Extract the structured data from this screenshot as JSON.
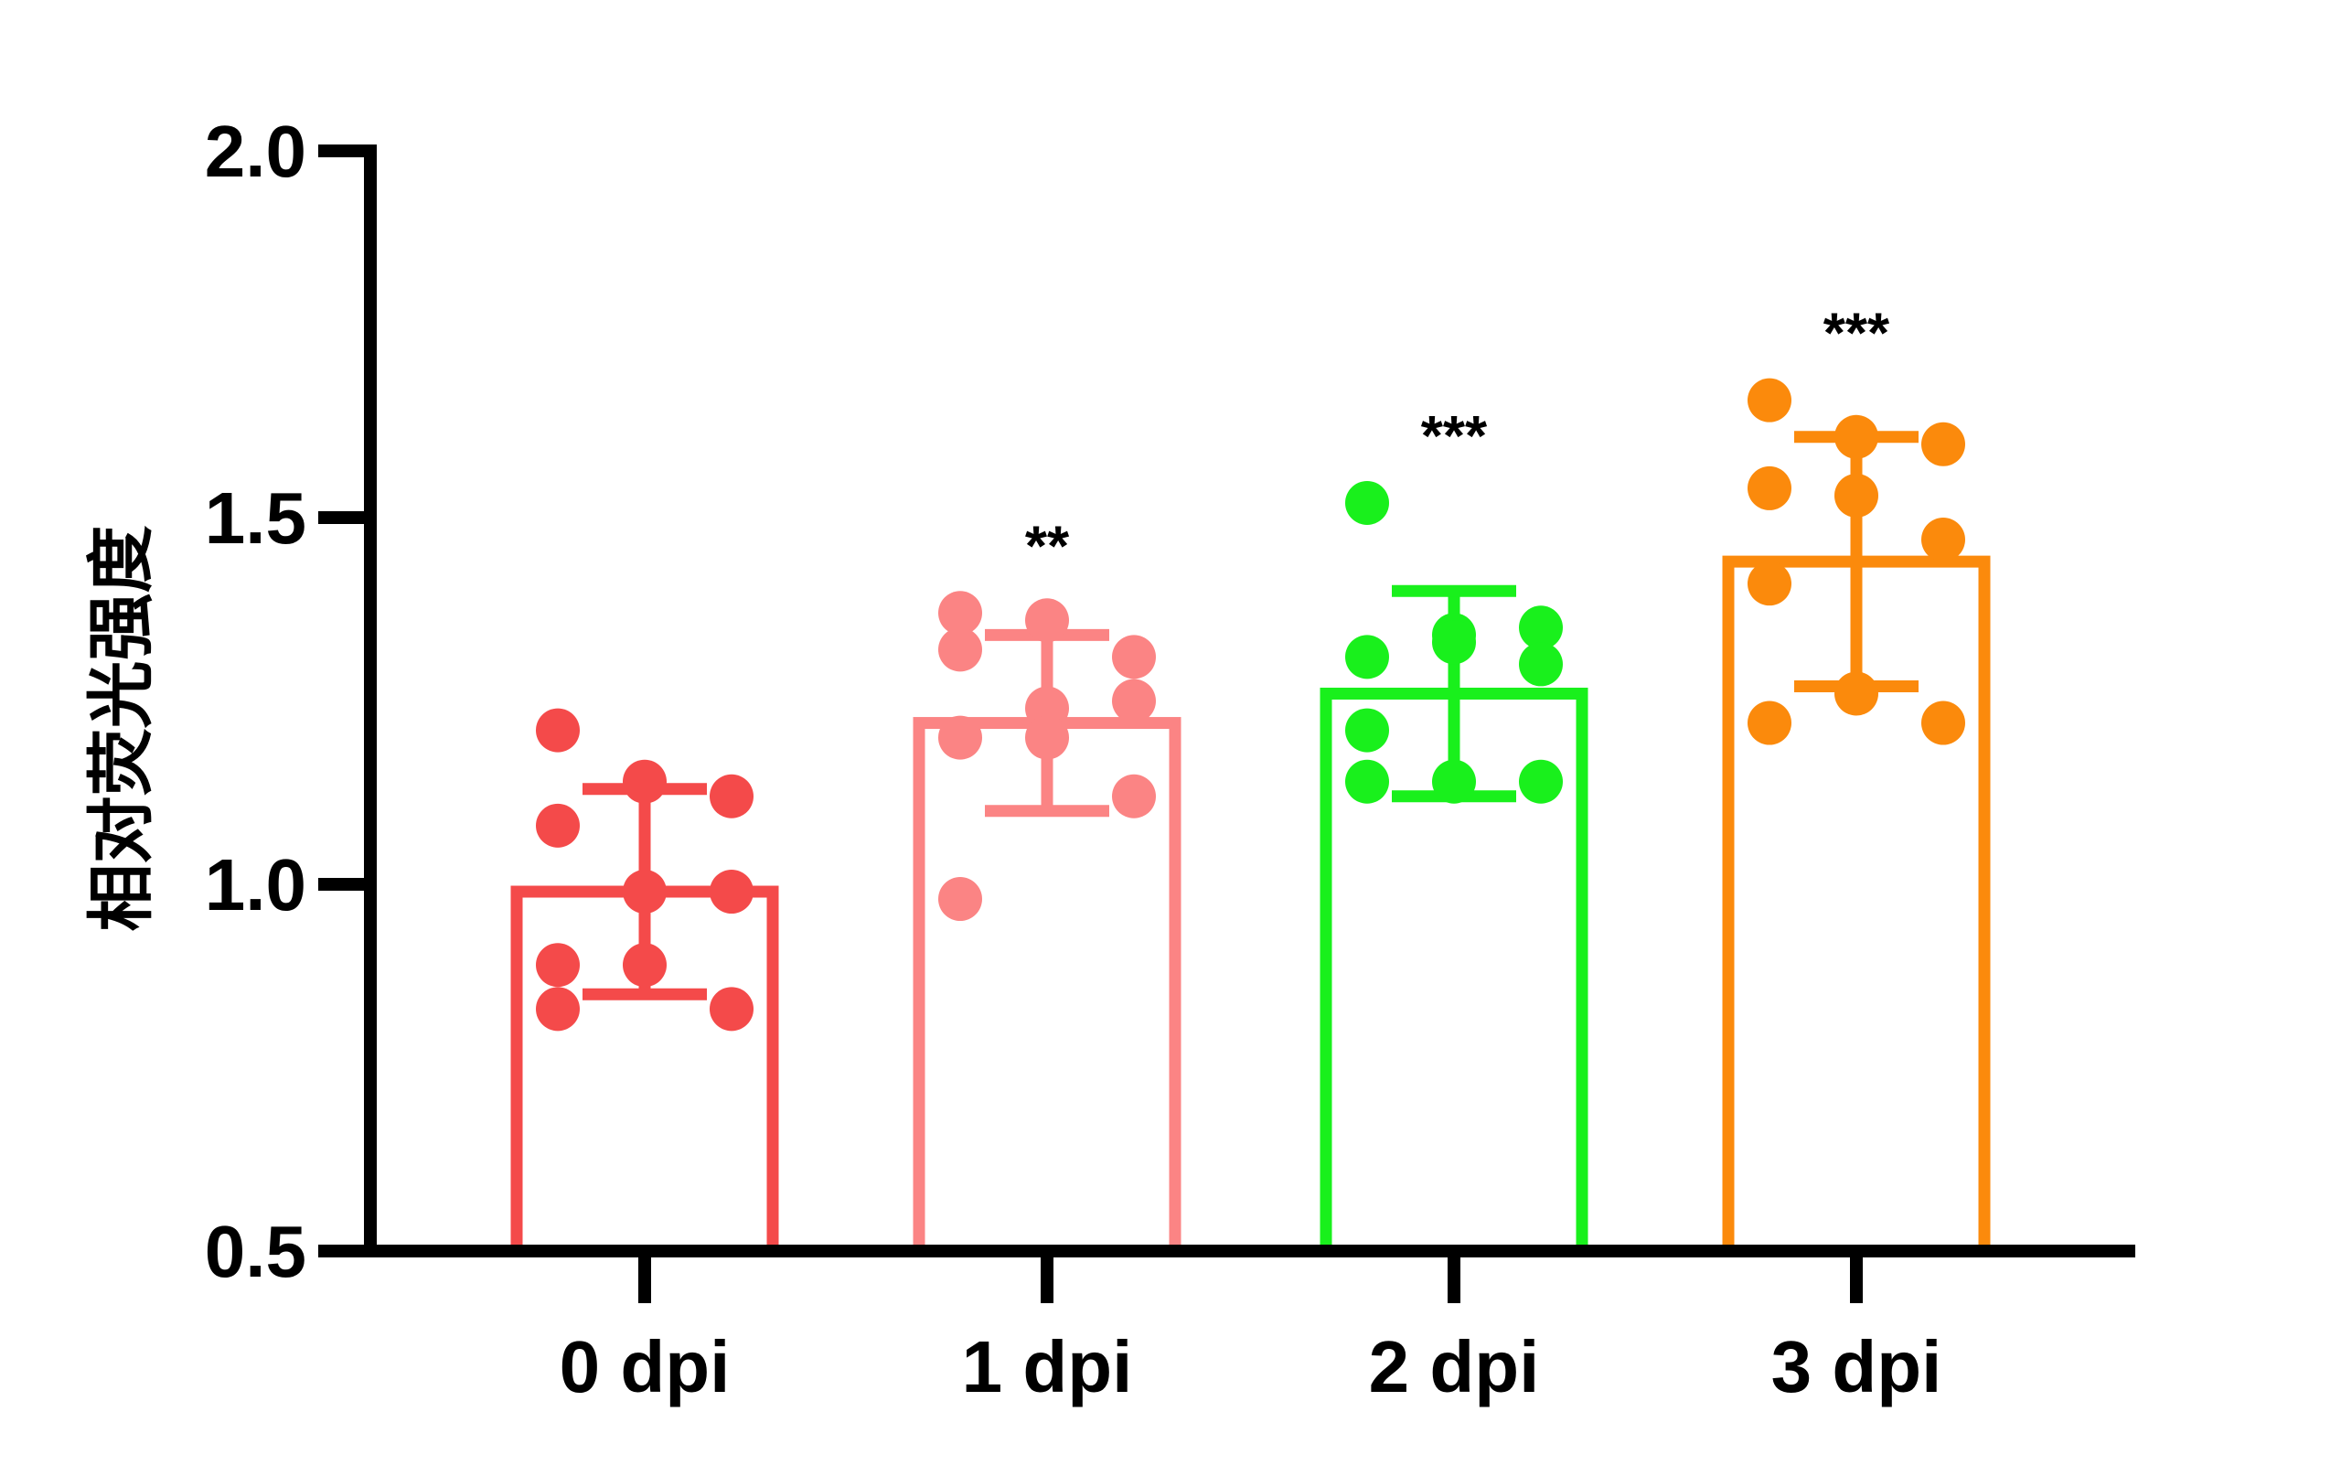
{
  "chart_data": {
    "type": "bar",
    "title": "",
    "xlabel": "",
    "ylabel": "相对荧光强度",
    "ylim": [
      0.5,
      2.0
    ],
    "yticks": [
      0.5,
      1.0,
      1.5,
      2.0
    ],
    "ytick_labels": [
      "0.5",
      "1.0",
      "1.5",
      "2.0"
    ],
    "grid": false,
    "categories": [
      "0 dpi",
      "1 dpi",
      "2 dpi",
      "3 dpi"
    ],
    "means": [
      0.99,
      1.22,
      1.26,
      1.44
    ],
    "sd": [
      0.14,
      0.12,
      0.14,
      0.17
    ],
    "significance": [
      "",
      "**",
      "***",
      "***"
    ],
    "colors": [
      "#f44a4a",
      "#fb8484",
      "#19f01c",
      "#fb8a0c"
    ],
    "points": [
      [
        1.21,
        1.14,
        1.12,
        1.08,
        0.99,
        0.99,
        0.89,
        0.89,
        0.83,
        0.83
      ],
      [
        1.37,
        1.36,
        1.31,
        1.32,
        1.24,
        1.25,
        1.2,
        1.2,
        1.12,
        0.98
      ],
      [
        1.52,
        1.34,
        1.35,
        1.31,
        1.33,
        1.3,
        1.21,
        1.14,
        1.14,
        1.14
      ],
      [
        1.66,
        1.61,
        1.6,
        1.54,
        1.53,
        1.47,
        1.41,
        1.26,
        1.22,
        1.22
      ]
    ]
  }
}
